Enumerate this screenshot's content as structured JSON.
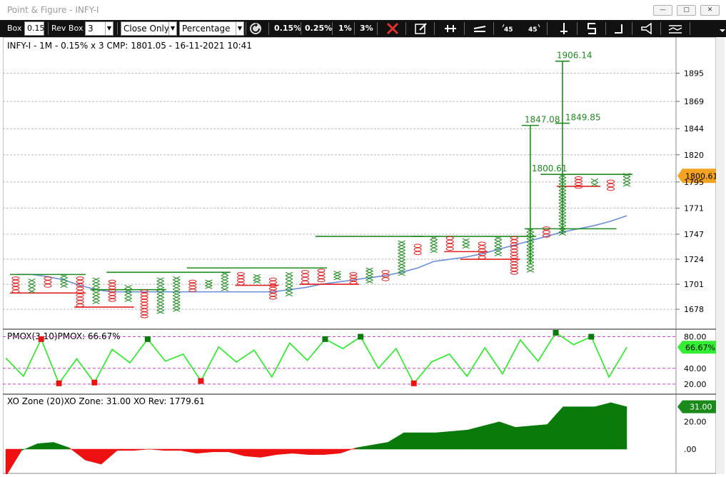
{
  "window": {
    "title": "Point & Figure - INFY-I"
  },
  "toolbar": {
    "box_label": "Box",
    "box_value": "0.15",
    "rev_label": "Rev Box",
    "rev_value": "3",
    "mode": "Close Only",
    "scale": "Percentage",
    "pcts": [
      "0.15%",
      "0.25%",
      "1%",
      "3%"
    ],
    "icons": [
      "refresh-icon",
      "close-x-icon",
      "edit-icon",
      "pin-icon",
      "trend-icon",
      "rotate-left-45-icon",
      "rotate-right-45-icon",
      "vertical-line-icon",
      "bracket-icon",
      "step-icon",
      "announce-icon",
      "indicator-icon"
    ]
  },
  "colors": {
    "x_col": "#1f8a1f",
    "o_col": "#e02020",
    "ma": "#6a8fd8",
    "pmox": "#22ee22",
    "zone_pos": "#0a7a0a",
    "zone_neg": "#ee1111",
    "price_tag": "#f3a221",
    "signal_tag": "#33ee33"
  },
  "main_panel": {
    "header": "INFY-I - 1M - 0.15% x 3 CMP: 1801.05 - 16-11-2021 10:41",
    "y_ticks": [
      "1895",
      "1869",
      "1844",
      "1820",
      "1795",
      "1771",
      "1747",
      "1724",
      "1701",
      "1678"
    ],
    "current_price": "1800.61",
    "annotations": {
      "target1": "1906.14",
      "target2": "1847.08",
      "target3": "1849.85",
      "target4": "1800.61"
    }
  },
  "pmox_panel": {
    "header": "PMOX(3,10)PMOX: 66.67%",
    "ticks": [
      "80.00",
      "40.00",
      "20.00"
    ],
    "value": "66.67%"
  },
  "zone_panel": {
    "header": "XO Zone (20)XO Zone: 31.00 XO Rev: 1779.61",
    "ticks": [
      "20.00",
      ".00"
    ],
    "value": "31.00"
  },
  "chart_data": [
    {
      "type": "point-and-figure",
      "title": "INFY-I - 1M - 0.15% x 3 CMP: 1801.05 - 16-11-2021 10:41",
      "ylim": [
        1663,
        1915
      ],
      "columns": [
        {
          "dir": "O",
          "low": 1693,
          "high": 1708
        },
        {
          "dir": "X",
          "low": 1693,
          "high": 1706
        },
        {
          "dir": "O",
          "low": 1698,
          "high": 1708
        },
        {
          "dir": "X",
          "low": 1698,
          "high": 1710
        },
        {
          "dir": "O",
          "low": 1680,
          "high": 1708
        },
        {
          "dir": "X",
          "low": 1683,
          "high": 1707
        },
        {
          "dir": "O",
          "low": 1685,
          "high": 1705
        },
        {
          "dir": "X",
          "low": 1685,
          "high": 1700
        },
        {
          "dir": "O",
          "low": 1670,
          "high": 1696
        },
        {
          "dir": "X",
          "low": 1674,
          "high": 1707
        },
        {
          "dir": "X",
          "low": 1676,
          "high": 1708
        },
        {
          "dir": "O",
          "low": 1694,
          "high": 1705
        },
        {
          "dir": "X",
          "low": 1697,
          "high": 1705
        },
        {
          "dir": "X",
          "low": 1695,
          "high": 1712
        },
        {
          "dir": "O",
          "low": 1700,
          "high": 1712
        },
        {
          "dir": "X",
          "low": 1702,
          "high": 1710
        },
        {
          "dir": "O",
          "low": 1687,
          "high": 1707
        },
        {
          "dir": "X",
          "low": 1690,
          "high": 1712
        },
        {
          "dir": "O",
          "low": 1701,
          "high": 1714
        },
        {
          "dir": "O",
          "low": 1703,
          "high": 1715
        },
        {
          "dir": "X",
          "low": 1705,
          "high": 1713
        },
        {
          "dir": "O",
          "low": 1701,
          "high": 1712
        },
        {
          "dir": "X",
          "low": 1702,
          "high": 1716
        },
        {
          "dir": "O",
          "low": 1704,
          "high": 1714
        },
        {
          "dir": "X",
          "low": 1709,
          "high": 1741
        },
        {
          "dir": "O",
          "low": 1728,
          "high": 1738
        },
        {
          "dir": "X",
          "low": 1730,
          "high": 1745
        },
        {
          "dir": "O",
          "low": 1732,
          "high": 1745
        },
        {
          "dir": "X",
          "low": 1734,
          "high": 1743
        },
        {
          "dir": "O",
          "low": 1724,
          "high": 1740
        },
        {
          "dir": "X",
          "low": 1727,
          "high": 1745
        },
        {
          "dir": "O",
          "low": 1710,
          "high": 1745
        },
        {
          "dir": "X",
          "low": 1712,
          "high": 1752
        },
        {
          "dir": "O",
          "low": 1744,
          "high": 1754
        },
        {
          "dir": "X",
          "low": 1746,
          "high": 1802
        },
        {
          "dir": "O",
          "low": 1789,
          "high": 1800
        },
        {
          "dir": "X",
          "low": 1791,
          "high": 1798
        },
        {
          "dir": "O",
          "low": 1787,
          "high": 1797
        },
        {
          "dir": "X",
          "low": 1791,
          "high": 1803
        }
      ],
      "moving_average": [
        1710,
        1710,
        1708,
        1705,
        1700,
        1696,
        1694,
        1694,
        1694,
        1694,
        1694,
        1694,
        1694,
        1694,
        1694,
        1694,
        1694,
        1696,
        1698,
        1701,
        1703,
        1705,
        1707,
        1709,
        1712,
        1716,
        1722,
        1724,
        1726,
        1729,
        1733,
        1737,
        1741,
        1745,
        1749,
        1752,
        1755,
        1759,
        1764
      ]
    },
    {
      "type": "line",
      "title": "PMOX(3,10)PMOX: 66.67%",
      "ylim": [
        10,
        85
      ],
      "values": [
        53,
        30,
        77,
        21,
        52,
        22,
        64,
        47,
        77,
        49,
        58,
        24,
        67,
        48,
        63,
        29,
        72,
        50,
        77,
        65,
        80,
        40,
        65,
        21,
        48,
        58,
        30,
        66,
        33,
        76,
        49,
        85,
        70,
        80,
        29,
        66.67
      ]
    },
    {
      "type": "area",
      "title": "XO Zone (20)XO Zone: 31.00 XO Rev: 1779.61",
      "ylim": [
        -12,
        36
      ],
      "values": [
        -20,
        -1,
        4,
        5,
        1,
        -8,
        -11,
        -1,
        -1,
        0,
        -1,
        -1,
        -3,
        -2,
        -2,
        -5,
        -6,
        -4,
        -3,
        -4,
        -4,
        -3,
        1,
        3,
        5,
        12,
        12,
        12,
        13,
        14,
        17,
        20,
        16,
        17,
        18,
        31,
        31,
        31,
        34,
        31
      ]
    }
  ]
}
